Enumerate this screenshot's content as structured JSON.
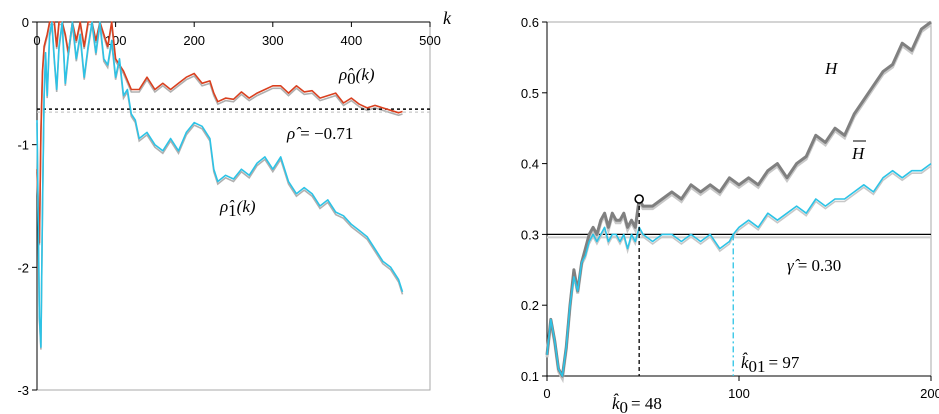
{
  "chart_data": [
    {
      "type": "line",
      "xlabel": "k",
      "xlim": [
        0,
        500
      ],
      "ylim": [
        -3,
        0
      ],
      "x_ticks": [
        "0",
        "100",
        "200",
        "300",
        "400",
        "500"
      ],
      "y_ticks": [
        "0",
        "-1",
        "-2",
        "-3"
      ],
      "colors": {
        "rho0": "#d9401f",
        "rho1": "#2cc3e6",
        "shadow": "#b0b0b0",
        "axis": "#000000"
      },
      "annotations": {
        "rho0_label": "ρ̂0(k)",
        "rho0_sym": "ρ̂",
        "rho0_sub": "0",
        "rho0_arg": "(k)",
        "rho1_sym": "ρ̂",
        "rho1_sub": "1",
        "rho1_arg": "(k)",
        "rho_hat_text": "ρ̂ = −0.71",
        "rho_sym": "ρ̂",
        "rho_eq": "= −0.71"
      },
      "hline": -0.71,
      "series": [
        {
          "key": "rho0",
          "x": [
            0,
            3,
            5,
            7,
            9,
            11,
            13,
            16,
            19,
            22,
            25,
            28,
            32,
            36,
            40,
            45,
            50,
            55,
            60,
            65,
            70,
            75,
            80,
            85,
            90,
            95,
            100,
            110,
            120,
            130,
            140,
            150,
            160,
            170,
            180,
            190,
            200,
            210,
            220,
            225,
            230,
            240,
            250,
            260,
            270,
            280,
            290,
            300,
            310,
            320,
            330,
            340,
            350,
            360,
            370,
            380,
            390,
            400,
            410,
            420,
            430,
            440,
            450,
            460,
            465
          ],
          "y": [
            -1.2,
            -1.8,
            -0.9,
            -0.4,
            -0.2,
            -0.15,
            -0.1,
            0.0,
            0.0,
            0.0,
            -0.2,
            0.0,
            0.0,
            -0.1,
            -0.25,
            0.0,
            -0.15,
            0.0,
            -0.2,
            0.0,
            0.0,
            -0.15,
            0.0,
            -0.1,
            -0.2,
            0.0,
            -0.3,
            -0.4,
            -0.55,
            -0.55,
            -0.45,
            -0.55,
            -0.5,
            -0.55,
            -0.5,
            -0.45,
            -0.42,
            -0.5,
            -0.48,
            -0.58,
            -0.65,
            -0.62,
            -0.63,
            -0.57,
            -0.62,
            -0.58,
            -0.55,
            -0.52,
            -0.52,
            -0.58,
            -0.52,
            -0.57,
            -0.56,
            -0.62,
            -0.6,
            -0.58,
            -0.66,
            -0.62,
            -0.67,
            -0.7,
            -0.68,
            -0.7,
            -0.72,
            -0.74,
            -0.73
          ]
        },
        {
          "key": "rho1",
          "x": [
            0,
            3,
            5,
            7,
            9,
            11,
            13,
            16,
            19,
            22,
            25,
            28,
            32,
            36,
            40,
            45,
            50,
            55,
            60,
            65,
            70,
            75,
            80,
            85,
            90,
            95,
            100,
            105,
            110,
            115,
            120,
            125,
            130,
            140,
            150,
            160,
            170,
            180,
            190,
            200,
            210,
            220,
            225,
            230,
            240,
            250,
            260,
            270,
            280,
            290,
            300,
            310,
            320,
            330,
            340,
            350,
            360,
            370,
            380,
            390,
            400,
            410,
            420,
            430,
            440,
            450,
            460,
            465
          ],
          "y": [
            -0.8,
            -2.4,
            -2.65,
            -1.5,
            -0.6,
            -0.25,
            -0.6,
            -0.1,
            0.0,
            -0.3,
            -0.55,
            -0.2,
            0.0,
            -0.5,
            -0.25,
            0.0,
            -0.3,
            -0.1,
            -0.45,
            -0.2,
            0.0,
            -0.25,
            0.0,
            -0.3,
            -0.35,
            -0.15,
            -0.45,
            -0.3,
            -0.6,
            -0.55,
            -0.75,
            -0.8,
            -0.95,
            -0.9,
            -1.0,
            -1.05,
            -0.95,
            -1.05,
            -0.9,
            -0.82,
            -0.85,
            -0.95,
            -1.2,
            -1.3,
            -1.25,
            -1.28,
            -1.2,
            -1.25,
            -1.15,
            -1.1,
            -1.2,
            -1.1,
            -1.3,
            -1.4,
            -1.35,
            -1.4,
            -1.5,
            -1.45,
            -1.55,
            -1.58,
            -1.65,
            -1.7,
            -1.75,
            -1.85,
            -1.95,
            -2.0,
            -2.1,
            -2.2
          ]
        }
      ]
    },
    {
      "type": "line",
      "xlim": [
        0,
        200
      ],
      "ylim": [
        0.1,
        0.6
      ],
      "x_ticks": [
        "0",
        "100",
        "200"
      ],
      "y_ticks": [
        "0.1",
        "0.2",
        "0.3",
        "0.4",
        "0.5",
        "0.6"
      ],
      "colors": {
        "H": "#808080",
        "Hbar": "#2cc3e6",
        "shadow": "#c8c8c8",
        "axis": "#000000"
      },
      "annotations": {
        "H_label": "H",
        "Hbar_label": "H",
        "gamma_text": "γ̂ = 0.30",
        "gamma_sym": "γ̂",
        "gamma_eq": "= 0.30",
        "k0_text": "k̂0 = 48",
        "k0_sym": "k̂",
        "k0_sub": "0",
        "k0_eq": "= 48",
        "k01_text": "k̂01 = 97",
        "k01_sym": "k̂",
        "k01_sub": "01",
        "k01_eq": "= 97"
      },
      "hline": 0.3,
      "k0": 48,
      "k01": 97,
      "marker": {
        "x": 48,
        "y": 0.35
      },
      "series": [
        {
          "key": "H",
          "x": [
            0,
            2,
            4,
            6,
            8,
            10,
            12,
            14,
            16,
            18,
            20,
            22,
            24,
            26,
            28,
            30,
            32,
            34,
            36,
            38,
            40,
            42,
            44,
            46,
            48,
            50,
            55,
            60,
            65,
            70,
            75,
            80,
            85,
            90,
            95,
            100,
            105,
            110,
            115,
            120,
            125,
            130,
            135,
            140,
            145,
            150,
            155,
            160,
            165,
            170,
            175,
            180,
            185,
            190,
            195,
            200
          ],
          "y": [
            0.13,
            0.18,
            0.15,
            0.11,
            0.1,
            0.14,
            0.2,
            0.25,
            0.22,
            0.26,
            0.28,
            0.3,
            0.31,
            0.3,
            0.32,
            0.33,
            0.31,
            0.33,
            0.32,
            0.32,
            0.33,
            0.31,
            0.32,
            0.31,
            0.35,
            0.34,
            0.34,
            0.35,
            0.36,
            0.35,
            0.37,
            0.36,
            0.37,
            0.36,
            0.38,
            0.37,
            0.38,
            0.37,
            0.39,
            0.4,
            0.38,
            0.4,
            0.41,
            0.44,
            0.43,
            0.45,
            0.44,
            0.47,
            0.49,
            0.51,
            0.53,
            0.54,
            0.57,
            0.56,
            0.59,
            0.6
          ]
        },
        {
          "key": "Hbar",
          "x": [
            0,
            2,
            4,
            6,
            8,
            10,
            12,
            14,
            16,
            18,
            20,
            22,
            24,
            26,
            28,
            30,
            32,
            34,
            36,
            38,
            40,
            42,
            44,
            46,
            48,
            50,
            55,
            60,
            65,
            70,
            75,
            80,
            85,
            90,
            95,
            97,
            100,
            105,
            110,
            115,
            120,
            125,
            130,
            135,
            140,
            145,
            150,
            155,
            160,
            165,
            170,
            175,
            180,
            185,
            190,
            195,
            200
          ],
          "y": [
            0.13,
            0.18,
            0.15,
            0.11,
            0.1,
            0.14,
            0.2,
            0.24,
            0.22,
            0.26,
            0.27,
            0.29,
            0.3,
            0.29,
            0.3,
            0.31,
            0.29,
            0.3,
            0.3,
            0.29,
            0.3,
            0.28,
            0.3,
            0.29,
            0.31,
            0.3,
            0.29,
            0.3,
            0.3,
            0.29,
            0.3,
            0.29,
            0.3,
            0.28,
            0.29,
            0.3,
            0.31,
            0.32,
            0.31,
            0.33,
            0.32,
            0.33,
            0.34,
            0.33,
            0.35,
            0.34,
            0.35,
            0.35,
            0.36,
            0.37,
            0.36,
            0.38,
            0.39,
            0.38,
            0.39,
            0.39,
            0.4
          ]
        }
      ]
    }
  ]
}
